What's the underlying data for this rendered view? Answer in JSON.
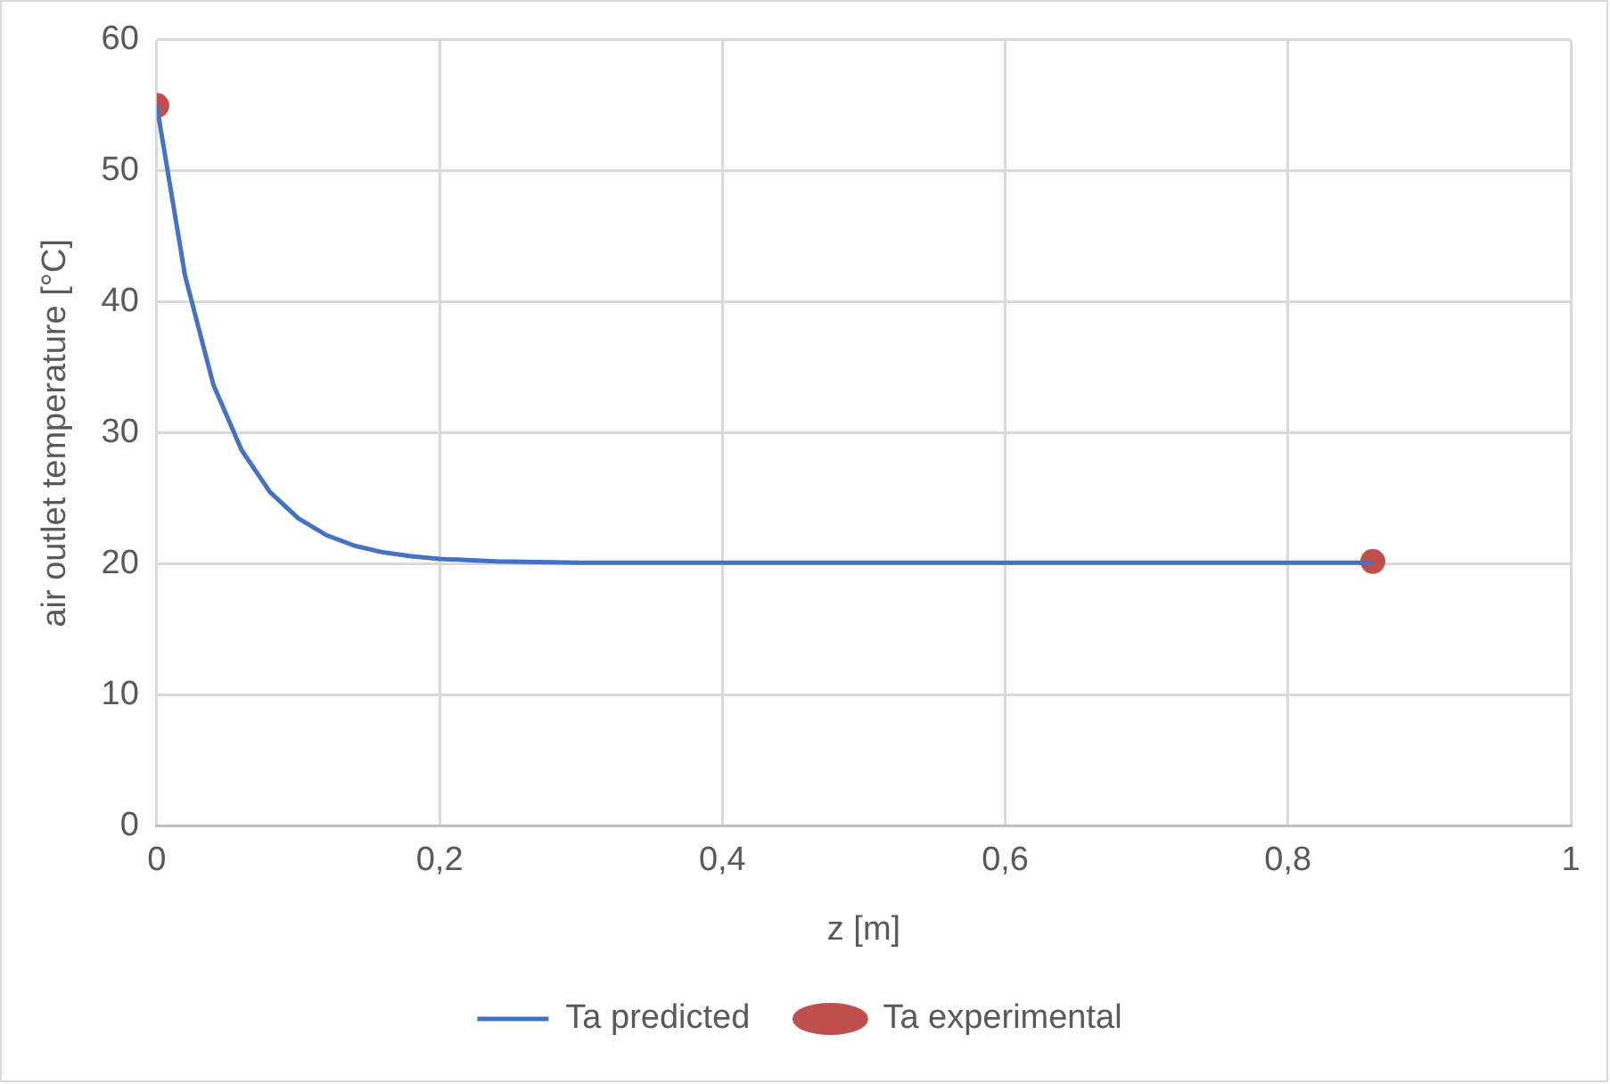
{
  "chart_data": {
    "type": "line",
    "xlabel": "z [m]",
    "ylabel": "air outlet temperature [°C]",
    "xlim": [
      0,
      1
    ],
    "xticks": [
      0,
      {
        "value": 0.2,
        "label": "0,2"
      },
      {
        "value": 0.4,
        "label": "0,4"
      },
      {
        "value": 0.6,
        "label": "0,6"
      },
      {
        "value": 0.8,
        "label": "0,8"
      },
      1
    ],
    "ylim": [
      0,
      60
    ],
    "yticks": [
      0,
      10,
      20,
      30,
      40,
      50,
      60
    ],
    "grid": true,
    "legend": "bottom",
    "series": [
      {
        "name": "Ta predicted",
        "color": "#4472c4",
        "marker": "none",
        "x": [
          0,
          0.02,
          0.04,
          0.06,
          0.08,
          0.1,
          0.12,
          0.14,
          0.16,
          0.18,
          0.2,
          0.24,
          0.3,
          0.4,
          0.5,
          0.6,
          0.7,
          0.8,
          0.86
        ],
        "values": [
          55,
          42,
          33.7,
          28.7,
          25.5,
          23.5,
          22.2,
          21.4,
          20.9,
          20.6,
          20.4,
          20.2,
          20.1,
          20.1,
          20.1,
          20.1,
          20.1,
          20.1,
          20.1
        ]
      },
      {
        "name": "Ta experimental",
        "type": "scatter",
        "color": "#c0504d",
        "marker": "circle",
        "x": [
          0,
          0.86
        ],
        "values": [
          55,
          20.2
        ]
      }
    ]
  }
}
